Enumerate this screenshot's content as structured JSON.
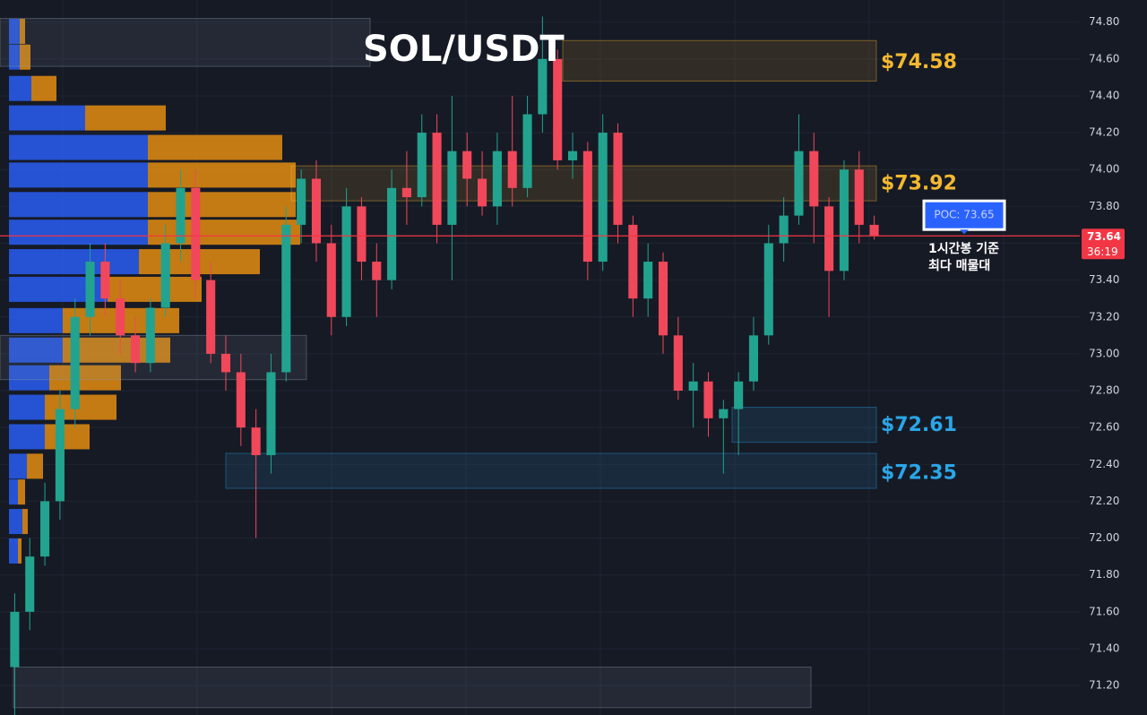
{
  "chart_data": {
    "type": "candlestick",
    "title": "SOL/USDT",
    "up_color": "#22a38f",
    "down_color": "#f0485a",
    "ylim": [
      71.04,
      74.92
    ],
    "yticks": [
      {
        "value": 74.8,
        "label": "74.80"
      },
      {
        "value": 74.6,
        "label": "74.60"
      },
      {
        "value": 74.4,
        "label": "74.40"
      },
      {
        "value": 74.2,
        "label": "74.20"
      },
      {
        "value": 74.0,
        "label": "74.00"
      },
      {
        "value": 73.8,
        "label": "73.80"
      },
      {
        "value": 73.6,
        "label": "73.60"
      },
      {
        "value": 73.4,
        "label": "73.40"
      },
      {
        "value": 73.2,
        "label": "73.20"
      },
      {
        "value": 73.0,
        "label": "73.00"
      },
      {
        "value": 72.8,
        "label": "72.80"
      },
      {
        "value": 72.6,
        "label": "72.60"
      },
      {
        "value": 72.4,
        "label": "72.40"
      },
      {
        "value": 72.2,
        "label": "72.20"
      },
      {
        "value": 72.0,
        "label": "72.00"
      },
      {
        "value": 71.8,
        "label": "71.80"
      },
      {
        "value": 71.6,
        "label": "71.60"
      },
      {
        "value": 71.4,
        "label": "71.40"
      },
      {
        "value": 71.2,
        "label": "71.20"
      }
    ],
    "grid": true,
    "open": [
      71.3,
      71.6,
      71.9,
      72.2,
      72.7,
      73.2,
      73.5,
      73.3,
      73.1,
      72.95,
      73.25,
      73.6,
      73.9,
      73.4,
      73.0,
      72.9,
      72.6,
      72.45,
      72.9,
      73.7,
      73.95,
      73.6,
      73.2,
      73.8,
      73.5,
      73.4,
      73.9,
      73.85,
      74.2,
      73.7,
      74.1,
      73.95,
      73.8,
      74.1,
      73.9,
      74.3,
      74.6,
      74.05,
      74.1,
      73.5,
      74.2,
      73.7,
      73.3,
      73.5,
      73.1,
      72.8,
      72.85,
      72.65,
      72.7,
      72.85,
      73.1,
      73.6,
      73.75,
      74.1,
      73.8,
      73.45,
      74.0,
      73.7
    ],
    "high": [
      71.7,
      72.0,
      72.3,
      72.8,
      73.3,
      73.6,
      73.6,
      73.4,
      73.2,
      73.3,
      73.7,
      74.0,
      74.0,
      73.5,
      73.1,
      73.0,
      72.7,
      73.0,
      73.8,
      74.0,
      74.05,
      73.7,
      73.9,
      73.85,
      73.6,
      74.0,
      74.1,
      74.3,
      74.3,
      74.4,
      74.2,
      74.1,
      74.2,
      74.4,
      74.4,
      74.83,
      74.65,
      74.2,
      74.15,
      74.3,
      74.25,
      73.75,
      73.6,
      73.55,
      73.2,
      72.95,
      72.9,
      72.75,
      72.9,
      73.2,
      73.7,
      73.85,
      74.3,
      74.2,
      73.85,
      74.05,
      74.1,
      73.75
    ],
    "low": [
      71.0,
      71.5,
      71.85,
      72.1,
      72.6,
      73.1,
      73.2,
      73.0,
      72.9,
      72.9,
      73.2,
      73.5,
      73.3,
      72.95,
      72.8,
      72.5,
      72.0,
      72.35,
      72.85,
      73.6,
      73.5,
      73.1,
      73.15,
      73.4,
      73.2,
      73.35,
      73.7,
      73.8,
      73.6,
      73.4,
      73.8,
      73.75,
      73.7,
      73.8,
      73.85,
      74.2,
      74.0,
      73.95,
      73.4,
      73.45,
      73.6,
      73.2,
      73.2,
      73.0,
      72.75,
      72.6,
      72.55,
      72.35,
      72.45,
      72.8,
      73.05,
      73.5,
      73.7,
      73.6,
      73.2,
      73.4,
      73.6,
      73.62
    ],
    "close": [
      71.6,
      71.9,
      72.2,
      72.7,
      73.2,
      73.5,
      73.3,
      73.1,
      72.95,
      73.25,
      73.6,
      73.9,
      73.4,
      73.0,
      72.9,
      72.6,
      72.45,
      72.9,
      73.7,
      73.95,
      73.6,
      73.2,
      73.8,
      73.5,
      73.4,
      73.9,
      73.85,
      74.2,
      73.7,
      74.1,
      73.95,
      73.8,
      74.1,
      73.9,
      74.3,
      74.6,
      74.05,
      74.1,
      73.5,
      74.2,
      73.7,
      73.3,
      73.5,
      73.1,
      72.8,
      72.85,
      72.65,
      72.7,
      72.85,
      73.1,
      73.6,
      73.75,
      74.1,
      73.8,
      73.45,
      74.0,
      73.7,
      73.64
    ],
    "volume_profile": {
      "buy_color": "#2962ff",
      "sell_color": "#f0930f",
      "prices": [
        74.75,
        74.61,
        74.44,
        74.28,
        74.12,
        73.97,
        73.81,
        73.66,
        73.5,
        73.35,
        73.18,
        73.02,
        72.87,
        72.71,
        72.55,
        72.39,
        72.25,
        72.09,
        71.93
      ],
      "buy": [
        12,
        12,
        25,
        85,
        155,
        155,
        155,
        155,
        145,
        110,
        60,
        60,
        45,
        40,
        40,
        20,
        10,
        15,
        10
      ],
      "sell": [
        6,
        12,
        28,
        90,
        150,
        165,
        165,
        170,
        135,
        105,
        130,
        120,
        80,
        80,
        50,
        18,
        8,
        6,
        4
      ]
    },
    "zones": [
      {
        "low": 74.56,
        "high": 74.82
      },
      {
        "low": 74.48,
        "high": 74.7,
        "label": {
          "value": 74.58,
          "label": "$74.58"
        },
        "color": "#f5b82e"
      },
      {
        "low": 73.83,
        "high": 74.02,
        "label": {
          "value": 73.92,
          "label": "$73.92"
        },
        "color": "#f5b82e"
      },
      {
        "low": 72.86,
        "high": 73.1
      },
      {
        "low": 72.52,
        "high": 72.71,
        "label": {
          "value": 72.61,
          "label": "$72.61"
        },
        "color": "#2aa6e8"
      },
      {
        "low": 72.27,
        "high": 72.46,
        "label": {
          "value": 72.35,
          "label": "$72.35"
        },
        "color": "#2aa6e8"
      },
      {
        "low": 71.08,
        "high": 71.3
      }
    ],
    "last_price": {
      "value": 73.64,
      "label": "73.64",
      "countdown": "36:19",
      "color": "#f23645"
    },
    "poc": {
      "value": 73.65,
      "label": "POC: 73.65"
    },
    "annotation": [
      "1시간봉 기준",
      "최다 매물대"
    ]
  }
}
